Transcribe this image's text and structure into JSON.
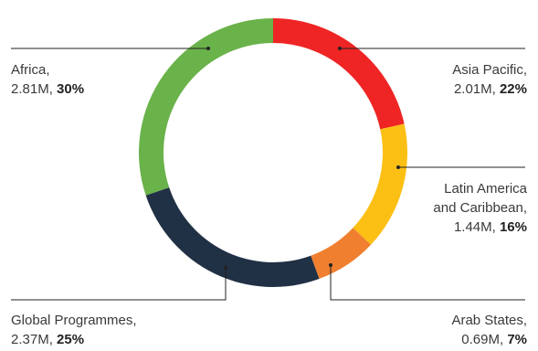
{
  "chart_data": {
    "type": "pie",
    "donut": true,
    "title": "",
    "categories": [
      "Asia Pacific",
      "Latin America and Caribbean",
      "Arab States",
      "Global Programmes",
      "Africa"
    ],
    "series": [
      {
        "values": [
          2.01,
          1.44,
          0.69,
          2.37,
          2.81
        ],
        "value_labels": [
          "2.01M",
          "1.44M",
          "0.69M",
          "2.37M",
          "2.81M"
        ],
        "percent_labels": [
          "22%",
          "16%",
          "7%",
          "25%",
          "30%"
        ]
      }
    ],
    "colors": [
      "#ee2524",
      "#fcbf14",
      "#f07f30",
      "#203045",
      "#6ab24a"
    ],
    "legend": "none"
  },
  "labels": {
    "asia_pacific": {
      "name": "Asia Pacific,",
      "value": "2.01M, ",
      "pct": "22%"
    },
    "latin_america": {
      "name1": "Latin America",
      "name2": "and Caribbean,",
      "value": "1.44M, ",
      "pct": "16%"
    },
    "arab_states": {
      "name": "Arab States,",
      "value": "0.69M, ",
      "pct": "7%"
    },
    "global_programmes": {
      "name": "Global Programmes,",
      "value": "2.37M, ",
      "pct": "25%"
    },
    "africa": {
      "name": "Africa,",
      "value": "2.81M, ",
      "pct": "30%"
    }
  }
}
